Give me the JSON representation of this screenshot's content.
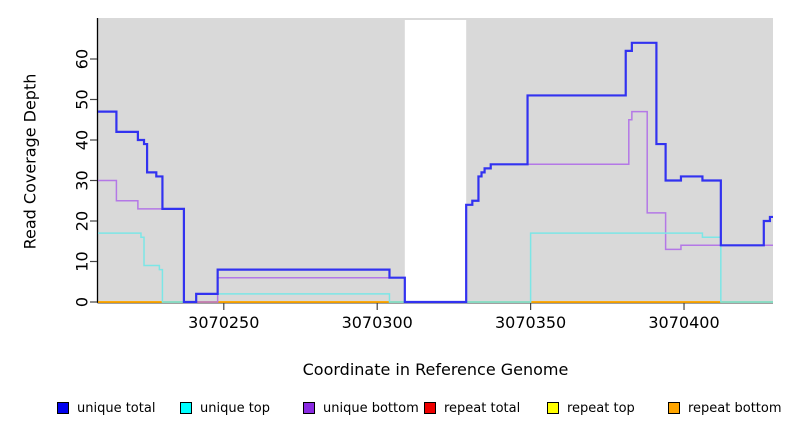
{
  "figure": {
    "background": "#ffffff",
    "plot_background": "#d9d9d9",
    "gap_background": "#ffffff",
    "axis_color": "#000000",
    "text_color": "#000000"
  },
  "chart_data": {
    "type": "line",
    "step": "after",
    "title": "",
    "xlabel": "Coordinate in Reference Genome",
    "ylabel": "Read Coverage Depth",
    "xlim": [
      3070209,
      3070429
    ],
    "ylim": [
      0,
      70
    ],
    "xticks": [
      3070250,
      3070300,
      3070350,
      3070400
    ],
    "yticks": [
      0,
      10,
      20,
      30,
      40,
      50,
      60
    ],
    "grid": false,
    "legend_position": "bottom",
    "no_data_gap": {
      "start": 3070309,
      "end": 3070329
    },
    "series": [
      {
        "name": "unique total",
        "line_color": "#3232f0",
        "legend_fill": "#0000ee",
        "line_width": 2.2,
        "points": [
          [
            3070209,
            47
          ],
          [
            3070215,
            42
          ],
          [
            3070222,
            40
          ],
          [
            3070224,
            39
          ],
          [
            3070225,
            32
          ],
          [
            3070228,
            31
          ],
          [
            3070230,
            23
          ],
          [
            3070237,
            0
          ],
          [
            3070241,
            2
          ],
          [
            3070248,
            8
          ],
          [
            3070304,
            6
          ],
          [
            3070309,
            0
          ],
          [
            3070329,
            24
          ],
          [
            3070331,
            25
          ],
          [
            3070333,
            31
          ],
          [
            3070334,
            32
          ],
          [
            3070335,
            33
          ],
          [
            3070337,
            34
          ],
          [
            3070349,
            51
          ],
          [
            3070381,
            62
          ],
          [
            3070383,
            64
          ],
          [
            3070391,
            39
          ],
          [
            3070394,
            30
          ],
          [
            3070399,
            31
          ],
          [
            3070406,
            30
          ],
          [
            3070412,
            14
          ],
          [
            3070426,
            20
          ],
          [
            3070428,
            21
          ]
        ]
      },
      {
        "name": "unique top",
        "line_color": "#7ce6e6",
        "legend_fill": "#00ffff",
        "line_width": 1.5,
        "points": [
          [
            3070209,
            17
          ],
          [
            3070223,
            16
          ],
          [
            3070224,
            9
          ],
          [
            3070229,
            8
          ],
          [
            3070230,
            0
          ],
          [
            3070241,
            2
          ],
          [
            3070304,
            0
          ],
          [
            3070350,
            17
          ],
          [
            3070406,
            16
          ],
          [
            3070412,
            0
          ]
        ]
      },
      {
        "name": "unique bottom",
        "line_color": "#b478e6",
        "legend_fill": "#8a2be2",
        "line_width": 1.5,
        "points": [
          [
            3070209,
            30
          ],
          [
            3070215,
            25
          ],
          [
            3070222,
            23
          ],
          [
            3070237,
            0
          ],
          [
            3070248,
            6
          ],
          [
            3070309,
            0
          ],
          [
            3070329,
            24
          ],
          [
            3070331,
            25
          ],
          [
            3070333,
            31
          ],
          [
            3070334,
            32
          ],
          [
            3070335,
            33
          ],
          [
            3070337,
            34
          ],
          [
            3070382,
            45
          ],
          [
            3070383,
            47
          ],
          [
            3070388,
            22
          ],
          [
            3070394,
            13
          ],
          [
            3070399,
            14
          ]
        ]
      },
      {
        "name": "repeat total",
        "line_color": "#ee0000",
        "legend_fill": "#ee0000",
        "line_width": 1.5,
        "points": [
          [
            3070209,
            0
          ]
        ]
      },
      {
        "name": "repeat top",
        "line_color": "#ffff00",
        "legend_fill": "#ffff00",
        "line_width": 1.5,
        "points": [
          [
            3070209,
            0
          ]
        ]
      },
      {
        "name": "repeat bottom",
        "line_color": "#ffa500",
        "legend_fill": "#ffa500",
        "line_width": 1.5,
        "points": [
          [
            3070209,
            0
          ]
        ]
      }
    ],
    "baseline_tint_segments": [
      {
        "from": 3070230,
        "to": 3070237,
        "color": "#85d4a5"
      },
      {
        "from": 3070304,
        "to": 3070309,
        "color": "#85d4a5"
      },
      {
        "from": 3070329,
        "to": 3070350,
        "color": "#85d4a5"
      },
      {
        "from": 3070412,
        "to": 3070429,
        "color": "#85d4a5"
      }
    ]
  }
}
